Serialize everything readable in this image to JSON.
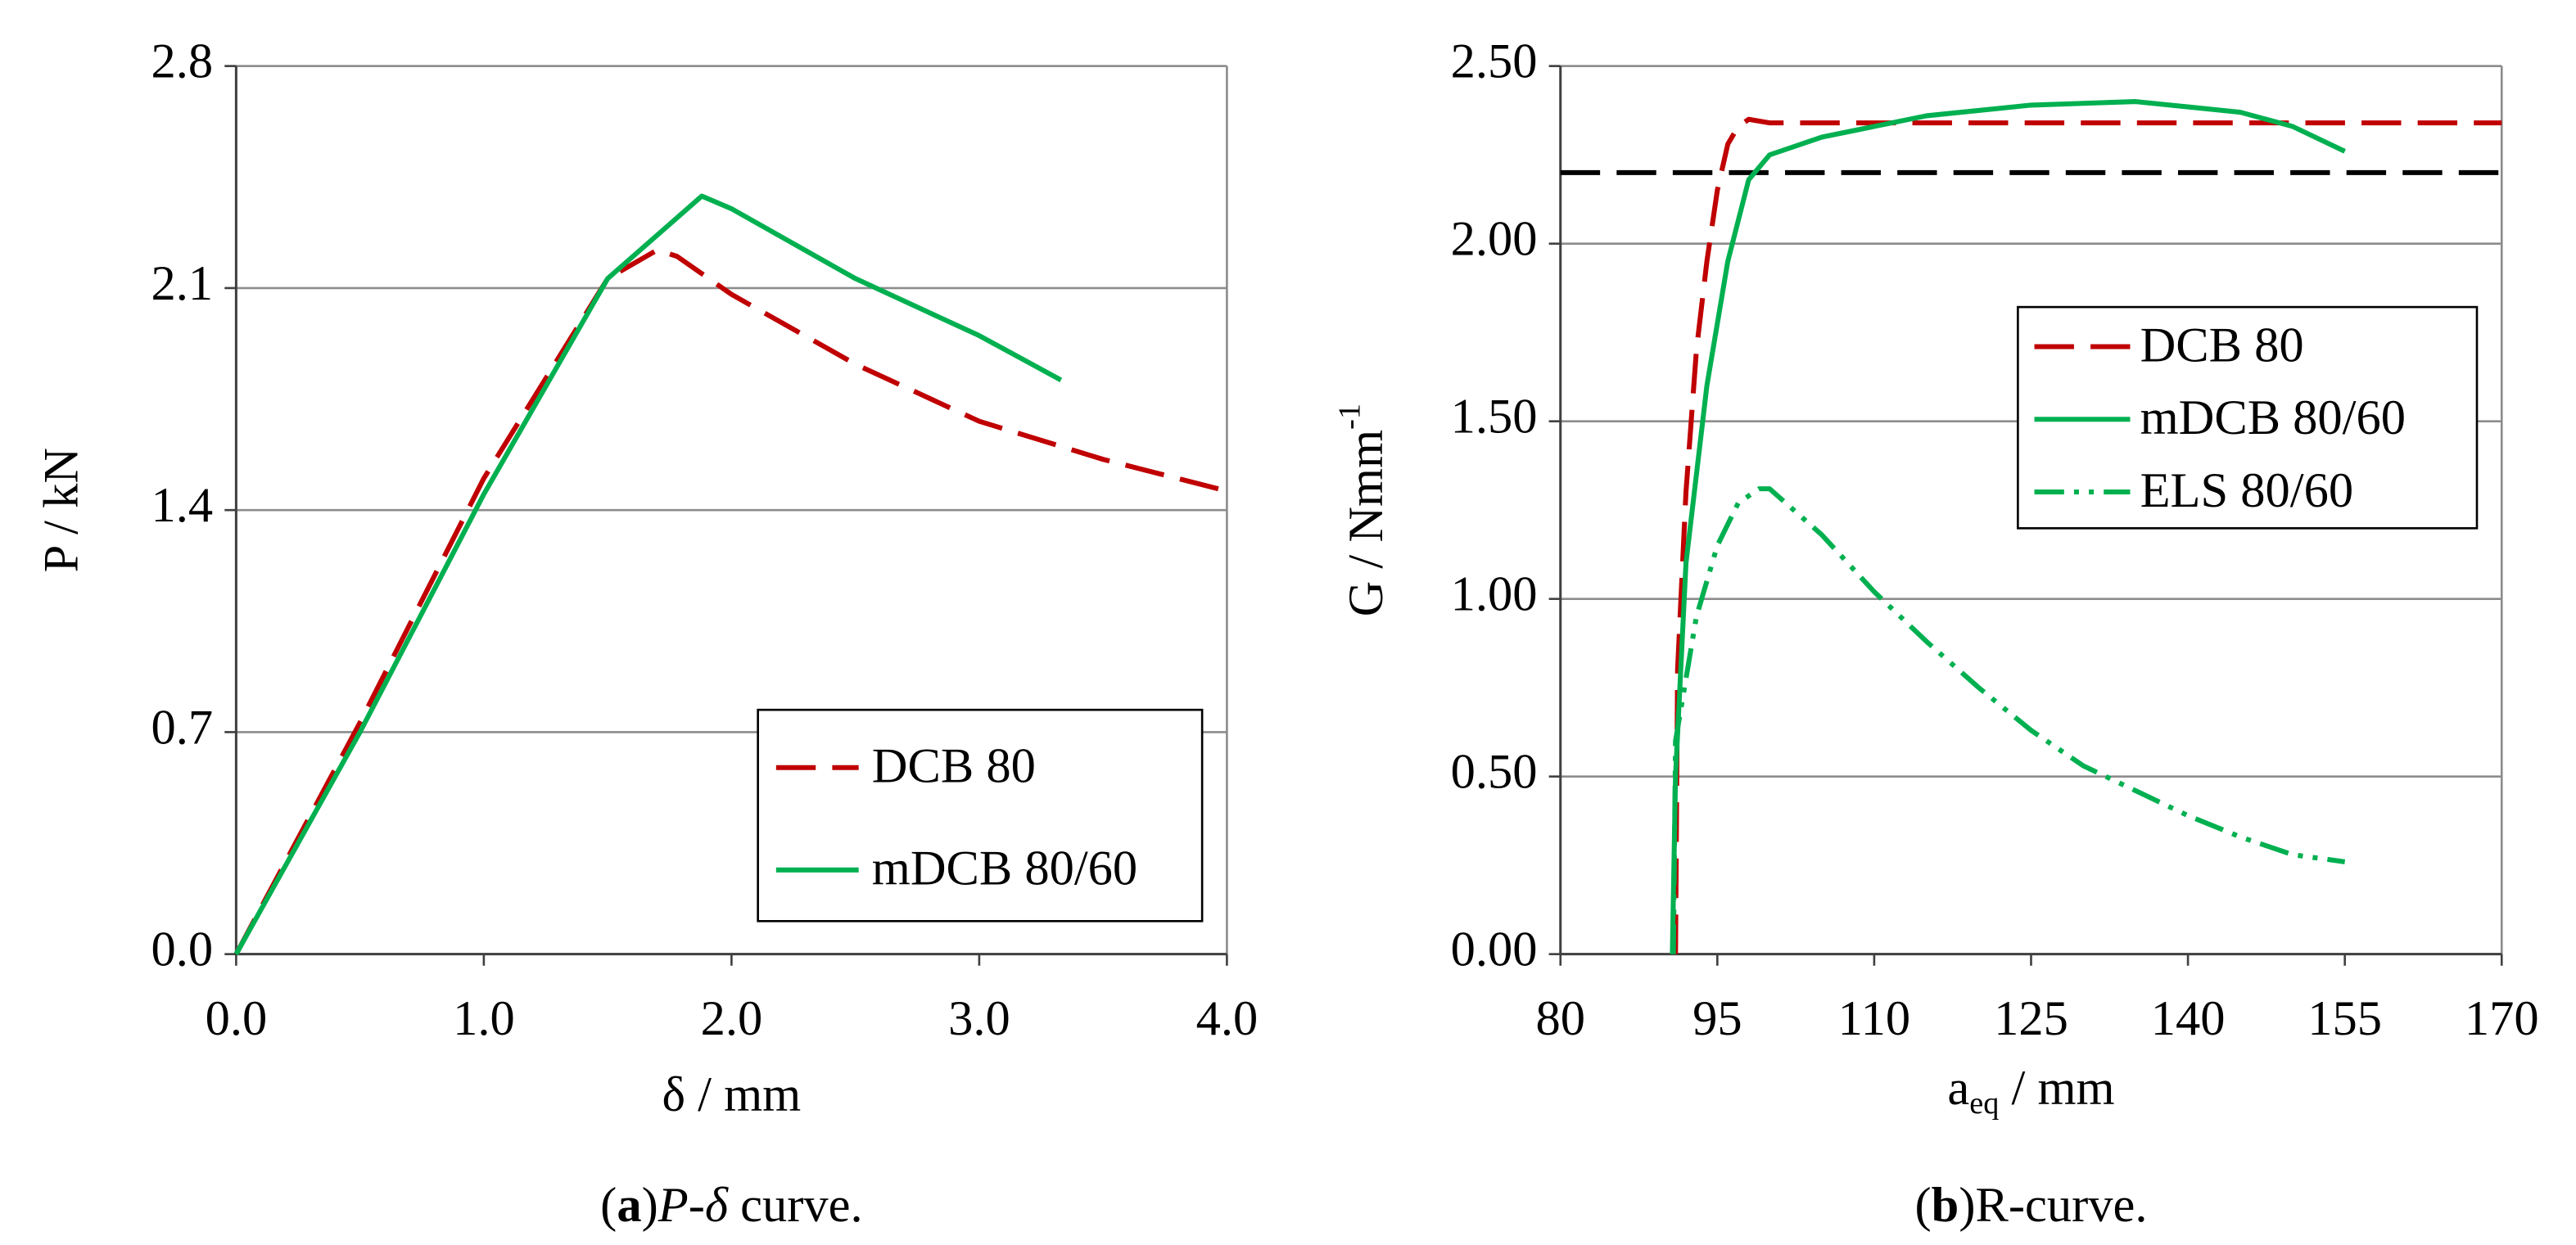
{
  "chart_data": [
    {
      "type": "line",
      "xlabel": "δ / mm",
      "ylabel": "P / kN",
      "caption": [
        "(",
        "a",
        ")",
        "P-δ",
        " curve."
      ],
      "xlim": [
        0,
        4
      ],
      "ylim": [
        0,
        2.8
      ],
      "xticks": [
        {
          "value": 0,
          "label": "0.0"
        },
        {
          "value": 1,
          "label": "1.0"
        },
        {
          "value": 2,
          "label": "2.0"
        },
        {
          "value": 3,
          "label": "3.0"
        },
        {
          "value": 4,
          "label": "4.0"
        }
      ],
      "yticks": [
        {
          "value": 0,
          "label": "0.0"
        },
        0.7,
        1.4,
        2.1,
        2.8
      ],
      "grid": true,
      "legend": "lower right",
      "series": [
        {
          "name": "DCB 80",
          "color": "#c00000",
          "dash": "dashed",
          "x": [
            0,
            0.5,
            1.0,
            1.5,
            1.7,
            1.78,
            2.0,
            2.5,
            3.0,
            3.5,
            4.0
          ],
          "values": [
            0,
            0.73,
            1.5,
            2.13,
            2.22,
            2.2,
            2.08,
            1.86,
            1.68,
            1.56,
            1.46
          ]
        },
        {
          "name": "mDCB 80/60",
          "color": "#00b050",
          "dash": "solid",
          "x": [
            0,
            0.5,
            1.0,
            1.5,
            1.88,
            2.0,
            2.5,
            3.0,
            3.33
          ],
          "values": [
            0,
            0.7,
            1.45,
            2.13,
            2.39,
            2.35,
            2.13,
            1.95,
            1.81
          ]
        }
      ]
    },
    {
      "type": "line",
      "xlabel": [
        "a",
        "eq",
        " / mm"
      ],
      "ylabel": [
        "G / Nmm",
        "-1"
      ],
      "caption": [
        "(",
        "b",
        ")",
        "R-curve."
      ],
      "xlim": [
        80,
        170
      ],
      "ylim": [
        0,
        2.5
      ],
      "xticks": [
        80,
        95,
        110,
        125,
        140,
        155,
        170
      ],
      "yticks": [
        {
          "value": 0,
          "label": "0.00"
        },
        {
          "value": 0.5,
          "label": "0.50"
        },
        {
          "value": 1,
          "label": "1.00"
        },
        {
          "value": 1.5,
          "label": "1.50"
        },
        {
          "value": 2,
          "label": "2.00"
        },
        {
          "value": 2.5,
          "label": "2.50"
        }
      ],
      "grid": true,
      "legend": "center right",
      "reference_lines": [
        {
          "value": 2.2,
          "color": "#000000",
          "dash": "dashed"
        }
      ],
      "series": [
        {
          "name": "DCB 80",
          "color": "#c00000",
          "dash": "dashed",
          "x": [
            91,
            91.2,
            92,
            93,
            94,
            95,
            96,
            97,
            98,
            100,
            170
          ],
          "values": [
            0,
            0.8,
            1.3,
            1.7,
            1.95,
            2.15,
            2.28,
            2.33,
            2.35,
            2.34,
            2.34
          ]
        },
        {
          "name": "mDCB 80/60",
          "color": "#00b050",
          "dash": "solid",
          "x": [
            90.7,
            91,
            92,
            94,
            96,
            98,
            100,
            105,
            115,
            125,
            135,
            145,
            150,
            155
          ],
          "values": [
            0,
            0.5,
            1.1,
            1.6,
            1.95,
            2.18,
            2.25,
            2.3,
            2.36,
            2.39,
            2.4,
            2.37,
            2.33,
            2.26
          ]
        },
        {
          "name": "ELS 80/60",
          "color": "#00b050",
          "dash": "dashdotdot",
          "x": [
            90.8,
            91,
            93,
            95,
            97,
            99,
            100,
            105,
            110,
            115,
            120,
            125,
            130,
            135,
            140,
            145,
            150,
            155
          ],
          "values": [
            0,
            0.6,
            0.95,
            1.15,
            1.27,
            1.31,
            1.31,
            1.18,
            1.02,
            0.88,
            0.75,
            0.63,
            0.53,
            0.46,
            0.39,
            0.33,
            0.28,
            0.26
          ]
        }
      ]
    }
  ]
}
